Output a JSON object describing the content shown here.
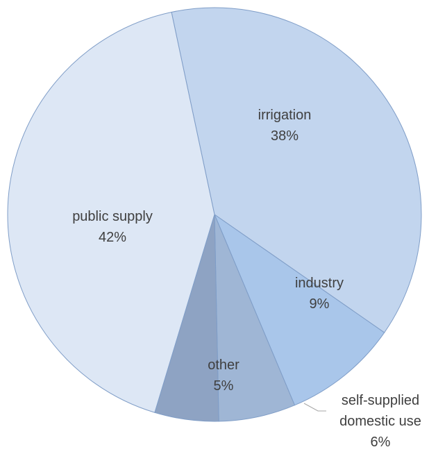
{
  "chart_data": {
    "type": "pie",
    "title": "",
    "slices": [
      {
        "label": "irrigation",
        "value_label": "38%",
        "value": 38,
        "color": "#c2d5ee"
      },
      {
        "label": "industry",
        "value_label": "9%",
        "value": 9,
        "color": "#a9c6ea"
      },
      {
        "label": "self-supplied domestic use",
        "label_lines": [
          "self-supplied",
          "domestic use"
        ],
        "value_label": "6%",
        "value": 6,
        "color": "#9fb6d5"
      },
      {
        "label": "other",
        "value_label": "5%",
        "value": 5,
        "color": "#8ea3c3"
      },
      {
        "label": "public supply",
        "value_label": "42%",
        "value": 42,
        "color": "#dde7f5"
      }
    ],
    "start_angle_deg": -12,
    "direction": "clockwise",
    "legend": "none",
    "slice_edge_color": "#7f9dc7"
  }
}
